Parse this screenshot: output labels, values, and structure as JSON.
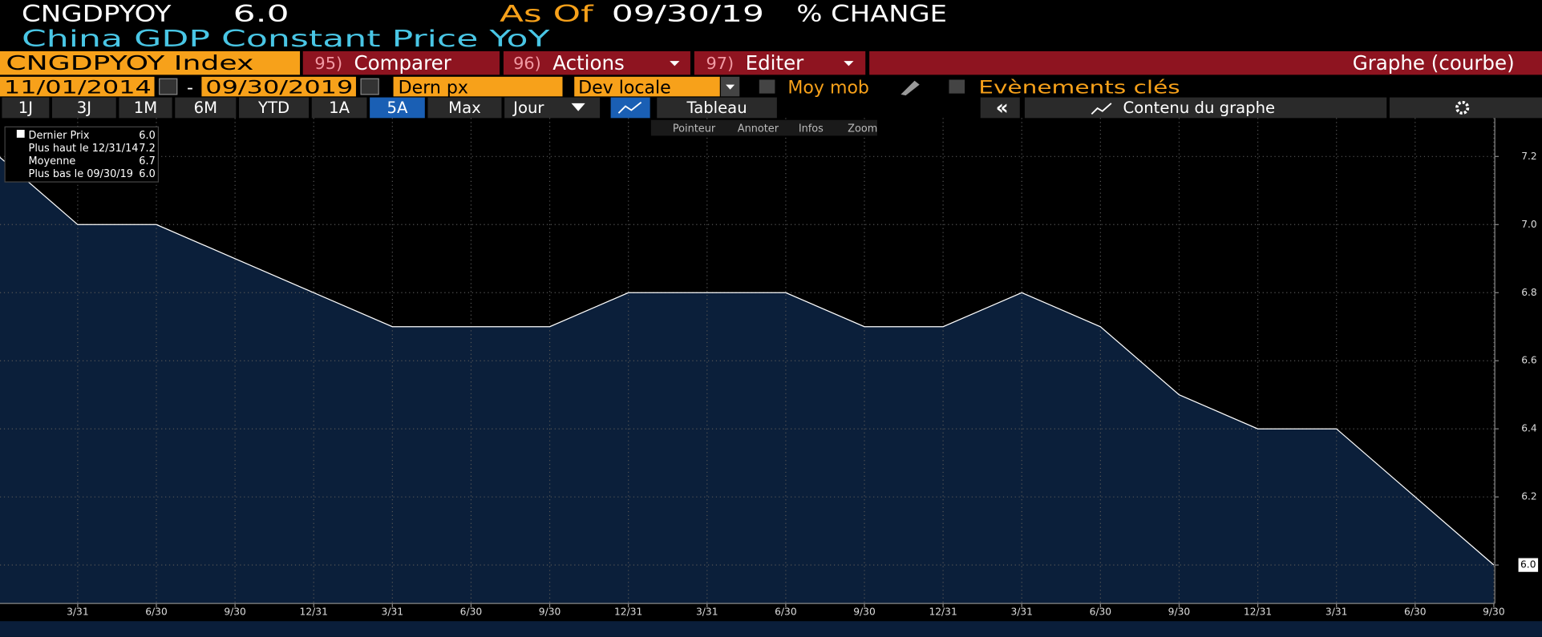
{
  "header": {
    "ticker": "CNGDPYOY",
    "last": "6.0",
    "as_of_label": "As Of",
    "as_of_date": "09/30/19",
    "change_label": "% CHANGE",
    "description": "China GDP Constant Price YoY"
  },
  "menu": {
    "security": "CNGDPYOY Index",
    "items": [
      {
        "num": "95)",
        "label": "Comparer"
      },
      {
        "num": "96)",
        "label": "Actions"
      },
      {
        "num": "97)",
        "label": "Editer"
      }
    ],
    "view": "Graphe (courbe)"
  },
  "fields": {
    "start_date": "11/01/2014",
    "dash": "-",
    "end_date": "09/30/2019",
    "price": "Dern px",
    "currency": "Dev locale",
    "moving_avg": "Moy mob",
    "events": "Evènements clés"
  },
  "ranges": [
    "1J",
    "3J",
    "1M",
    "6M",
    "YTD",
    "1A",
    "5A",
    "Max"
  ],
  "tools": {
    "period": "Jour",
    "table": "Tableau",
    "collapse": "«",
    "content": "Contenu du graphe"
  },
  "chart_tools": [
    "Pointeur",
    "Annoter",
    "Infos",
    "Zoom"
  ],
  "chart_data": {
    "type": "area",
    "color": "#ffffff",
    "fill": "#0b1f3a",
    "categories": [
      null,
      "3/31",
      "6/30",
      "9/30",
      "12/31",
      "3/31",
      "6/30",
      "9/30",
      "12/31",
      "3/31",
      "6/30",
      "9/30",
      "12/31",
      "3/31",
      "6/30",
      "9/30",
      "12/31",
      "3/31",
      "6/30",
      "9/30"
    ],
    "values": [
      7.2,
      7.0,
      7.0,
      6.9,
      6.8,
      6.7,
      6.7,
      6.7,
      6.8,
      6.8,
      6.8,
      6.7,
      6.7,
      6.8,
      6.7,
      6.5,
      6.4,
      6.4,
      6.2,
      6.0
    ],
    "value_labels": [
      null,
      null,
      null,
      null,
      null,
      null,
      null,
      null,
      null,
      null,
      null,
      null,
      null,
      null,
      null,
      null,
      null,
      null,
      null,
      "6.0"
    ],
    "ylim": [
      5.887,
      7.313
    ],
    "yticks": [
      {
        "value": 6,
        "label": "6.0"
      },
      6.2,
      6.4,
      6.6,
      6.8,
      {
        "value": 7,
        "label": "7.0"
      },
      7.2
    ],
    "grid": true,
    "stats": [
      {
        "label": "Dernier Prix",
        "value": "6.0"
      },
      {
        "label": "Plus haut le 12/31/14",
        "value": "7.2"
      },
      {
        "label": "Moyenne",
        "value": "6.7"
      },
      {
        "label": "Plus bas le 09/30/19",
        "value": "6.0"
      }
    ]
  }
}
